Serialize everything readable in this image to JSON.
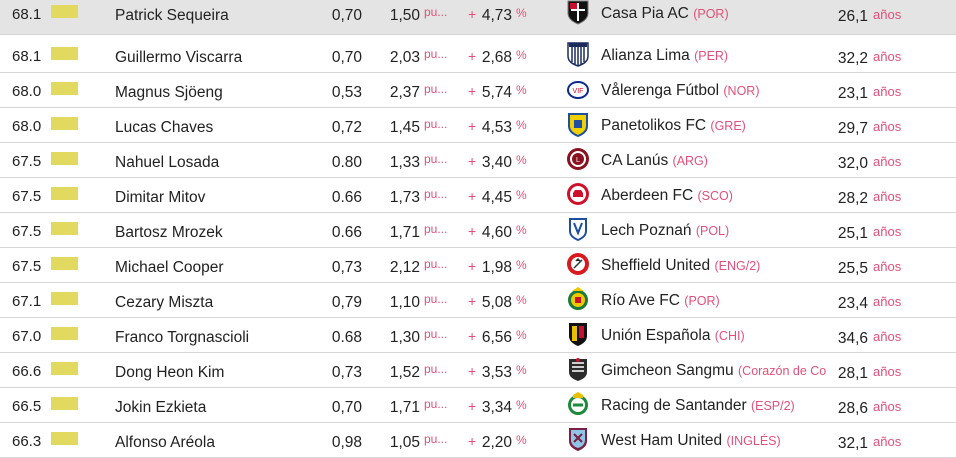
{
  "units": {
    "points": "pu...",
    "percent": "%",
    "plus": "+",
    "years": "años"
  },
  "colors": {
    "rating_bar": "#e2da60",
    "accent_text": "#e0507a",
    "highlight_row": "#e4e4e4"
  },
  "rows": [
    {
      "rating": "68.1",
      "name": "Patrick Sequeira",
      "v1": "0,70",
      "v2": "1,50",
      "pct": "4,73",
      "club": "Casa Pia AC",
      "league": "(POR)",
      "age": "26,1",
      "logo_icon": "casa-pia-crest-icon"
    },
    {
      "rating": "68.1",
      "name": "Guillermo Viscarra",
      "v1": "0,70",
      "v2": "2,03",
      "pct": "2,68",
      "club": "Alianza Lima",
      "league": "(PER)",
      "age": "32,2",
      "logo_icon": "alianza-lima-crest-icon"
    },
    {
      "rating": "68.0",
      "name": "Magnus Sjöeng",
      "v1": "0,53",
      "v2": "2,37",
      "pct": "5,74",
      "club": "Vålerenga Fútbol",
      "league": "(NOR)",
      "age": "23,1",
      "logo_icon": "valerenga-crest-icon"
    },
    {
      "rating": "68.0",
      "name": "Lucas Chaves",
      "v1": "0,72",
      "v2": "1,45",
      "pct": "4,53",
      "club": "Panetolikos FC",
      "league": "(GRE)",
      "age": "29,7",
      "logo_icon": "panetolikos-crest-icon"
    },
    {
      "rating": "67.5",
      "name": "Nahuel Losada",
      "v1": "0.80",
      "v2": "1,33",
      "pct": "3,40",
      "club": "CA Lanús",
      "league": "(ARG)",
      "age": "32,0",
      "logo_icon": "lanus-crest-icon"
    },
    {
      "rating": "67.5",
      "name": "Dimitar Mitov",
      "v1": "0.66",
      "v2": "1,73",
      "pct": "4,45",
      "club": "Aberdeen FC",
      "league": "(SCO)",
      "age": "28,2",
      "logo_icon": "aberdeen-crest-icon"
    },
    {
      "rating": "67.5",
      "name": "Bartosz Mrozek",
      "v1": "0.66",
      "v2": "1,71",
      "pct": "4,60",
      "club": "Lech Poznań",
      "league": "(POL)",
      "age": "25,1",
      "logo_icon": "lech-poznan-crest-icon"
    },
    {
      "rating": "67.5",
      "name": "Michael Cooper",
      "v1": "0,73",
      "v2": "2,12",
      "pct": "1,98",
      "club": "Sheffield United",
      "league": "(ENG/2)",
      "age": "25,5",
      "logo_icon": "sheffield-united-crest-icon"
    },
    {
      "rating": "67.1",
      "name": "Cezary Miszta",
      "v1": "0,79",
      "v2": "1,10",
      "pct": "5,08",
      "club": "Río Ave FC",
      "league": "(POR)",
      "age": "23,4",
      "logo_icon": "rio-ave-crest-icon"
    },
    {
      "rating": "67.0",
      "name": "Franco Torgnascioli",
      "v1": "0.68",
      "v2": "1,30",
      "pct": "6,56",
      "club": "Unión Española",
      "league": "(CHI)",
      "age": "34,6",
      "logo_icon": "union-espanola-crest-icon"
    },
    {
      "rating": "66.6",
      "name": "Dong Heon Kim",
      "v1": "0,73",
      "v2": "1,52",
      "pct": "3,53",
      "club": "Gimcheon Sangmu",
      "league": "(Corazón de Co",
      "age": "28,1",
      "logo_icon": "gimcheon-sangmu-crest-icon"
    },
    {
      "rating": "66.5",
      "name": "Jokin Ezkieta",
      "v1": "0,70",
      "v2": "1,71",
      "pct": "3,34",
      "club": "Racing de Santander",
      "league": "(ESP/2)",
      "age": "28,6",
      "logo_icon": "racing-santander-crest-icon"
    },
    {
      "rating": "66.3",
      "name": "Alfonso Aréola",
      "v1": "0,98",
      "v2": "1,05",
      "pct": "2,20",
      "club": "West Ham United",
      "league": "(INGLÉS)",
      "age": "32,1",
      "logo_icon": "west-ham-crest-icon"
    }
  ]
}
